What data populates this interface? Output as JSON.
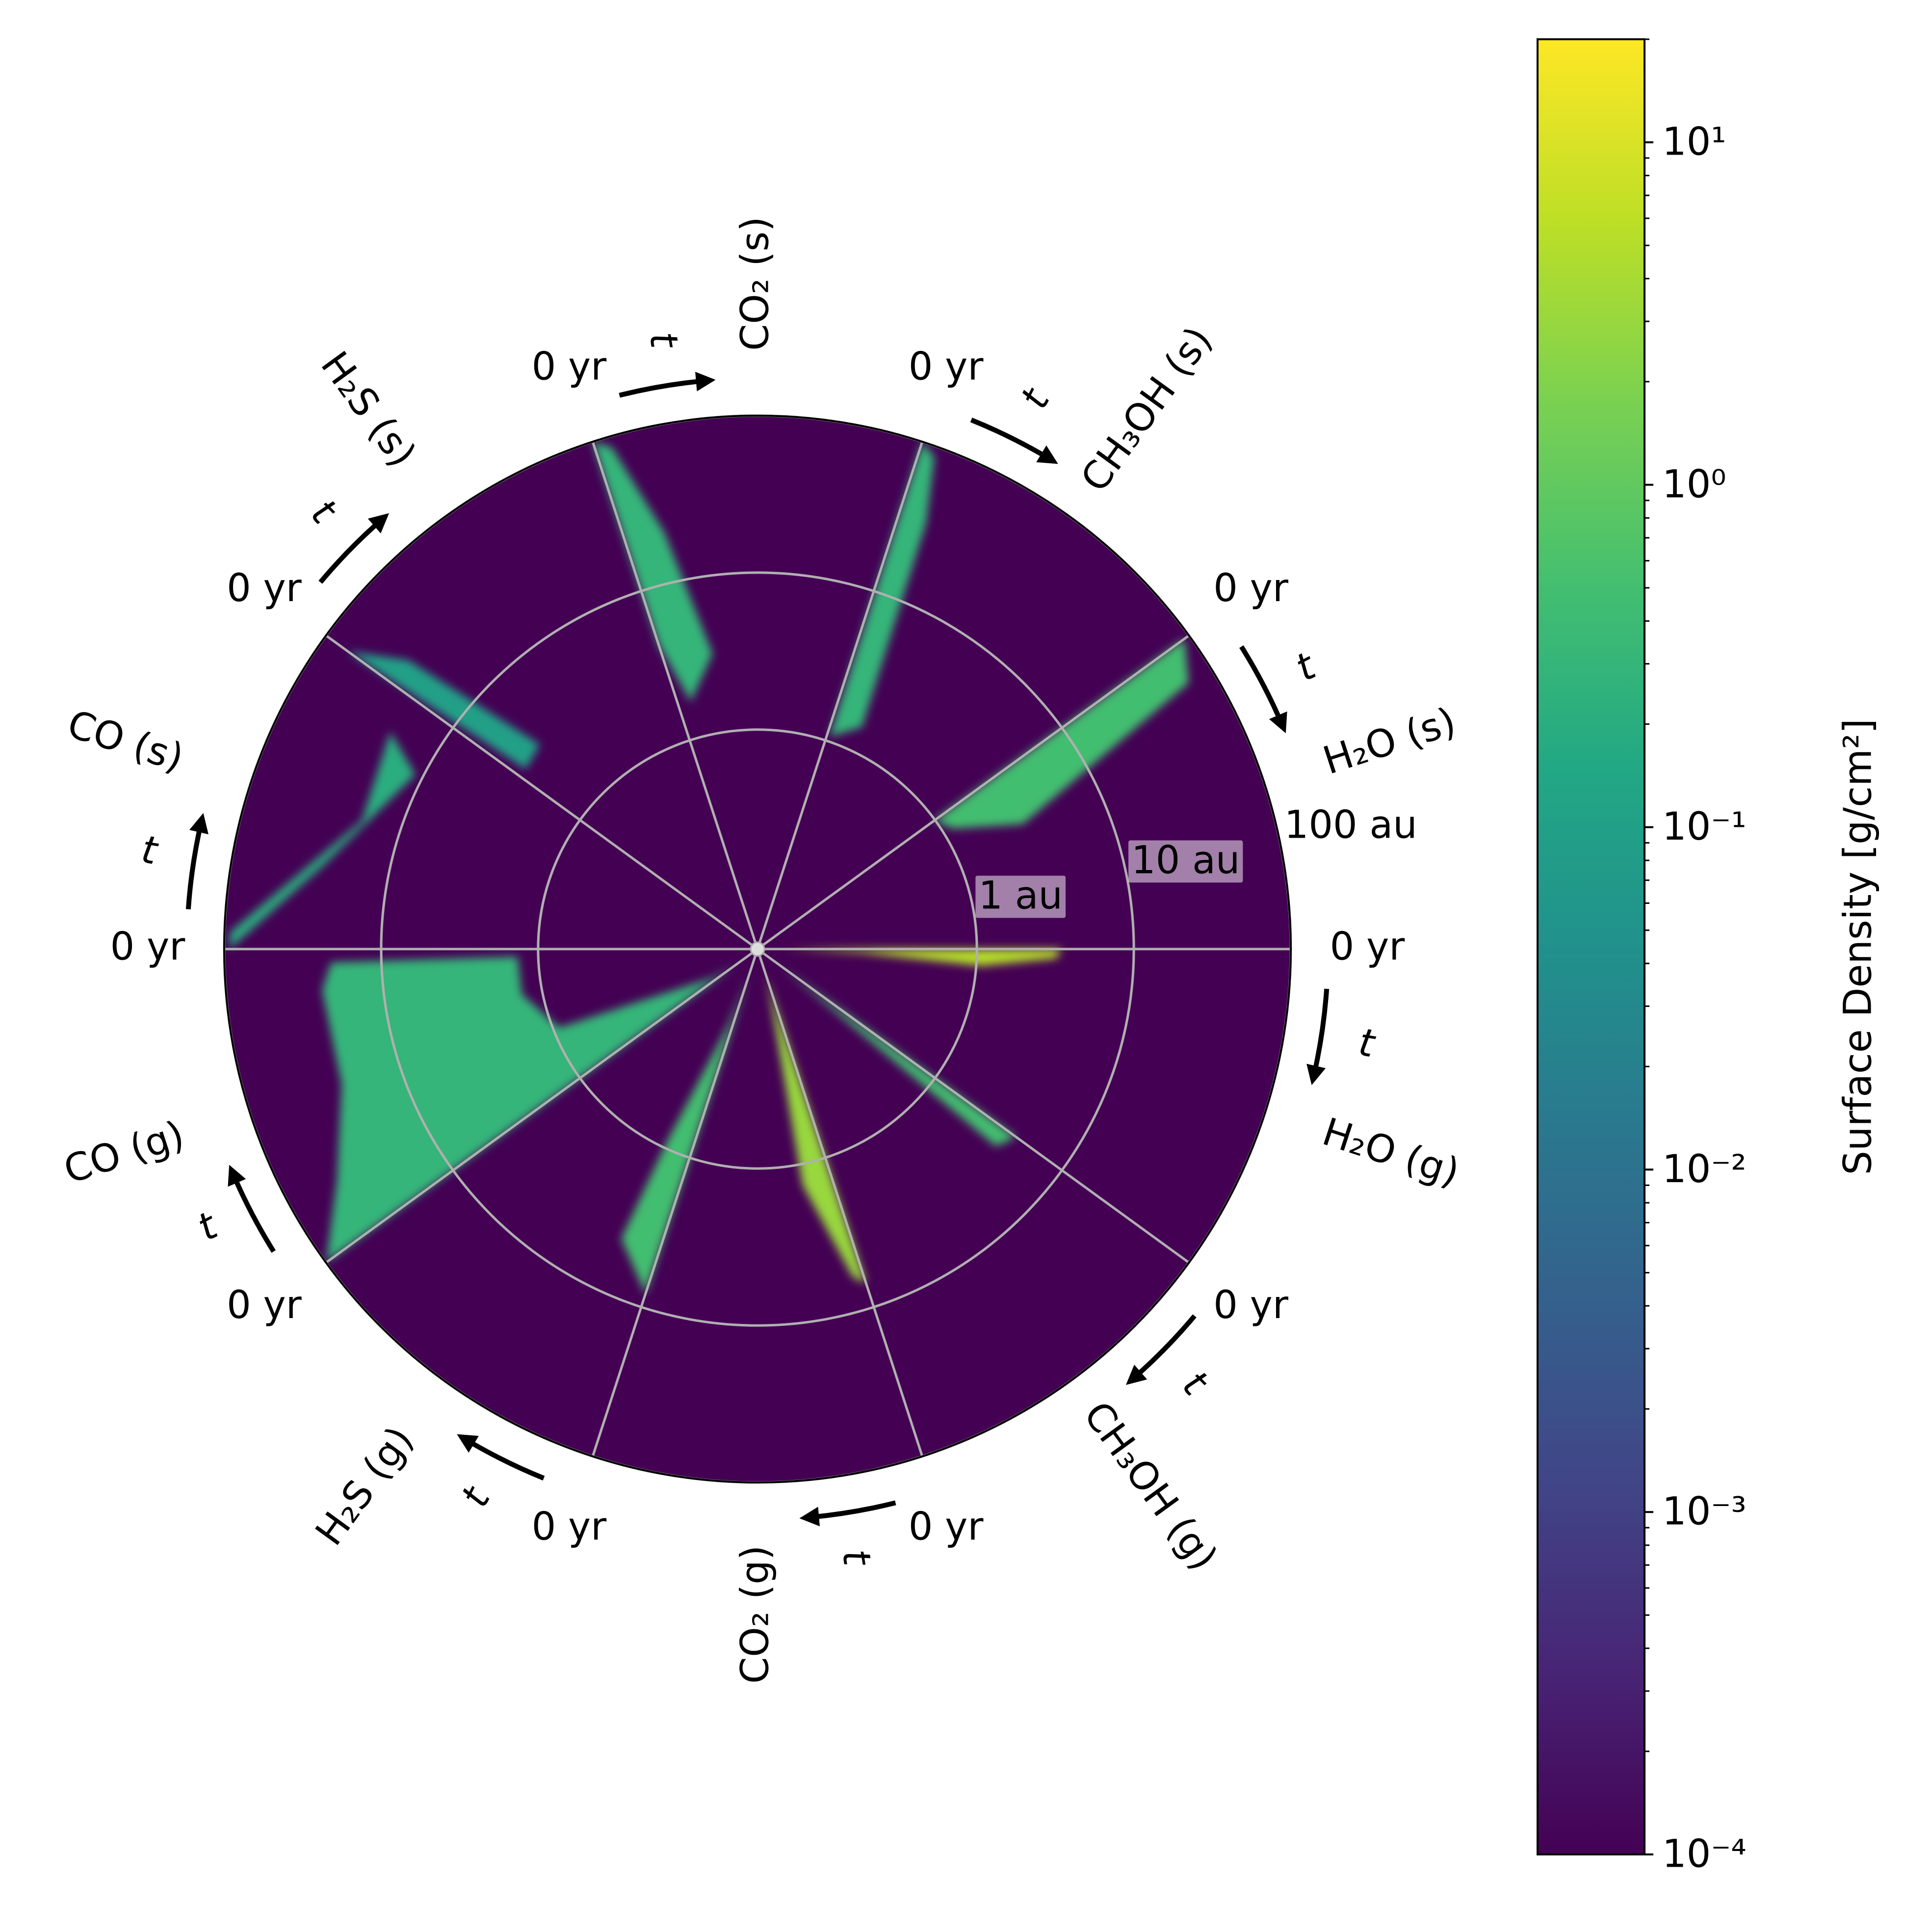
{
  "chart_data": {
    "type": "polar_heatmap",
    "colormap": "viridis",
    "log_color": true,
    "colorbar_label": "Surface Density [g/cm²]",
    "clim": [
      0.0001,
      20
    ],
    "cticks": [
      {
        "value": 0.0001,
        "label": "10⁻⁴"
      },
      {
        "value": 0.001,
        "label": "10⁻³"
      },
      {
        "value": 0.01,
        "label": "10⁻²"
      },
      {
        "value": 0.1,
        "label": "10⁻¹"
      },
      {
        "value": 1,
        "label": "10⁰"
      },
      {
        "value": 10,
        "label": "10¹"
      }
    ],
    "r_log": true,
    "rlim": [
      0.04,
      100
    ],
    "rticks": [
      {
        "value": 1,
        "label": "1 au"
      },
      {
        "value": 10,
        "label": "10 au"
      },
      {
        "value": 100,
        "label": "100 au"
      }
    ],
    "grid": true,
    "background_value": 0.0001,
    "sectors": [
      {
        "label": "H₂O (s)",
        "start_label": "0 yr",
        "time_label": "t",
        "peak": 0.5
      },
      {
        "label": "CH₃OH (s)",
        "start_label": "0 yr",
        "time_label": "t",
        "peak": 0.3
      },
      {
        "label": "CO₂ (s)",
        "start_label": "0 yr",
        "time_label": "t",
        "peak": 0.3
      },
      {
        "label": "H₂S (s)",
        "start_label": "0 yr",
        "time_label": "t",
        "peak": 0.1
      },
      {
        "label": "CO (s)",
        "start_label": "0 yr",
        "time_label": "t",
        "peak": 0.2
      },
      {
        "label": "CO (g)",
        "start_label": "0 yr",
        "time_label": "t",
        "peak": 0.3
      },
      {
        "label": "H₂S (g)",
        "start_label": "0 yr",
        "time_label": "t",
        "peak": 0.5
      },
      {
        "label": "CO₂ (g)",
        "start_label": "0 yr",
        "time_label": "t",
        "peak": 3
      },
      {
        "label": "CH₃OH (g)",
        "start_label": "0 yr",
        "time_label": "t",
        "peak": 0.5
      },
      {
        "label": "H₂O (g)",
        "start_label": "0 yr",
        "time_label": "t",
        "peak": 5
      }
    ]
  }
}
